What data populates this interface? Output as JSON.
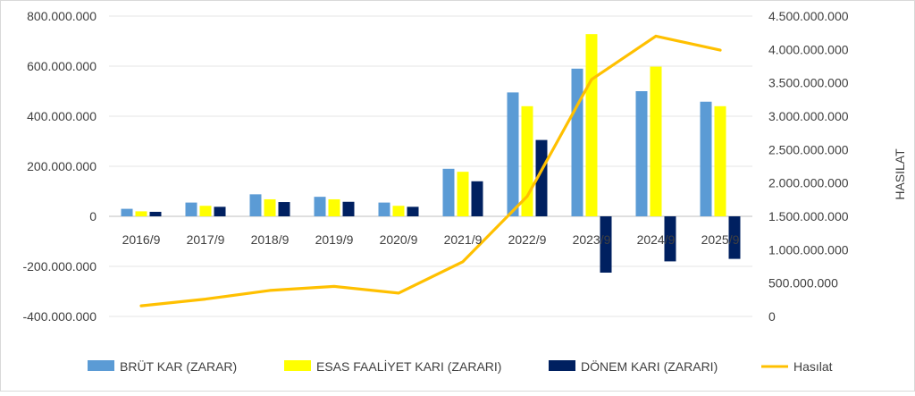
{
  "chart_data": {
    "type": "bar",
    "categories": [
      "2016/9",
      "2017/9",
      "2018/9",
      "2019/9",
      "2020/9",
      "2021/9",
      "2022/9",
      "2023/9",
      "2024/9",
      "2025/9"
    ],
    "series": [
      {
        "name": "BRÜT KAR (ZARAR)",
        "type": "bar",
        "axis": "left",
        "color": "#5B9BD5",
        "values": [
          30000000,
          55000000,
          88000000,
          78000000,
          55000000,
          190000000,
          495000000,
          590000000,
          500000000,
          458000000
        ]
      },
      {
        "name": "ESAS FAALİYET KARI (ZARARI)",
        "type": "bar",
        "axis": "left",
        "color": "#FFFF00",
        "values": [
          20000000,
          42000000,
          68000000,
          68000000,
          42000000,
          178000000,
          440000000,
          728000000,
          598000000,
          440000000
        ]
      },
      {
        "name": "DÖNEM KARI (ZARARI)",
        "type": "bar",
        "axis": "left",
        "color": "#002060",
        "values": [
          18000000,
          38000000,
          57000000,
          58000000,
          38000000,
          140000000,
          305000000,
          -225000000,
          -180000000,
          -170000000
        ]
      },
      {
        "name": "Hasılat",
        "type": "line",
        "axis": "right",
        "color": "#FFC000",
        "values": [
          160000000,
          260000000,
          390000000,
          450000000,
          350000000,
          820000000,
          1800000000,
          3550000000,
          4200000000,
          3990000000
        ]
      }
    ],
    "y_left": {
      "ylim": [
        -400000000,
        800000000
      ],
      "ticks": [
        800000000,
        600000000,
        400000000,
        200000000,
        0,
        -200000000,
        -400000000
      ],
      "tick_labels": [
        "800.000.000",
        "600.000.000",
        "400.000.000",
        "200.000.000",
        "0",
        "-200.000.000",
        "-400.000.000"
      ]
    },
    "y_right": {
      "label": "HASILAT",
      "ylim": [
        0,
        4500000000
      ],
      "ticks": [
        4500000000,
        4000000000,
        3500000000,
        3000000000,
        2500000000,
        2000000000,
        1500000000,
        1000000000,
        500000000,
        0
      ],
      "tick_labels": [
        "4.500.000.000",
        "4.000.000.000",
        "3.500.000.000",
        "3.000.000.000",
        "2.500.000.000",
        "2.000.000.000",
        "1.500.000.000",
        "1.000.000.000",
        "500.000.000",
        "0"
      ]
    },
    "legend_position": "bottom",
    "grid": "horizontal"
  }
}
